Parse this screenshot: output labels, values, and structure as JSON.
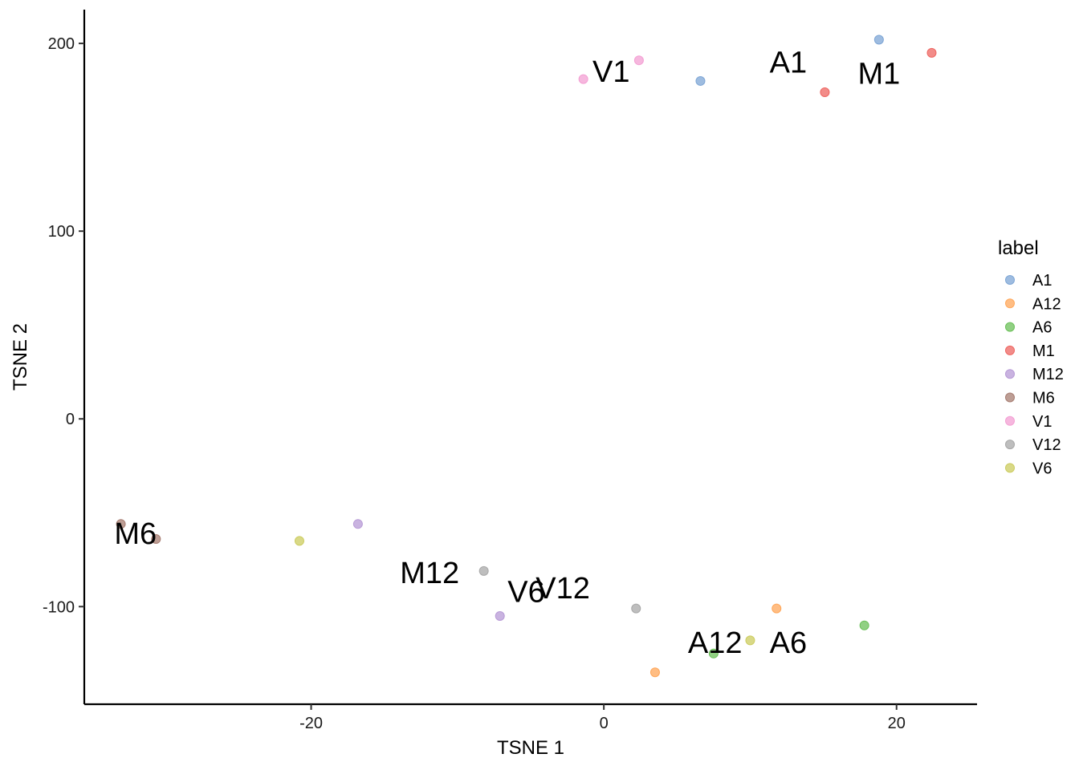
{
  "chart_data": {
    "type": "scatter",
    "title": "",
    "xlabel": "TSNE 1",
    "ylabel": "TSNE 2",
    "xlim": [
      -35.5,
      25.5
    ],
    "ylim": [
      -152,
      218
    ],
    "x_ticks": [
      -20,
      0,
      20
    ],
    "y_ticks": [
      -100,
      0,
      100,
      200
    ],
    "x_tick_labels": [
      "-20",
      "0",
      "20"
    ],
    "y_tick_labels": [
      "-100",
      "0",
      "100",
      "200"
    ],
    "grid": false,
    "legend": {
      "title": "label",
      "placement": "right"
    },
    "series": [
      {
        "name": "A1",
        "color": "#7EA6D5",
        "points": [
          [
            18.8,
            202
          ],
          [
            6.6,
            180
          ]
        ]
      },
      {
        "name": "A12",
        "color": "#FFA75A",
        "points": [
          [
            11.8,
            -101
          ],
          [
            3.5,
            -135
          ]
        ]
      },
      {
        "name": "A6",
        "color": "#6CC05A",
        "points": [
          [
            17.8,
            -110
          ],
          [
            7.5,
            -125
          ]
        ]
      },
      {
        "name": "M1",
        "color": "#EE6661",
        "points": [
          [
            22.4,
            195
          ],
          [
            15.1,
            174
          ]
        ]
      },
      {
        "name": "M12",
        "color": "#B79AD6",
        "points": [
          [
            -16.8,
            -56
          ],
          [
            -7.1,
            -105
          ]
        ]
      },
      {
        "name": "M6",
        "color": "#A77D72",
        "points": [
          [
            -33.0,
            -56
          ],
          [
            -30.6,
            -64
          ]
        ]
      },
      {
        "name": "V1",
        "color": "#F39FD3",
        "points": [
          [
            -1.4,
            181
          ],
          [
            2.4,
            191
          ]
        ]
      },
      {
        "name": "V12",
        "color": "#A8A8A8",
        "points": [
          [
            -8.2,
            -81
          ],
          [
            2.2,
            -101
          ]
        ]
      },
      {
        "name": "V6",
        "color": "#CCCC5F",
        "points": [
          [
            -20.8,
            -65
          ],
          [
            10.0,
            -118
          ]
        ]
      }
    ],
    "annotations": [
      {
        "text": "A1",
        "x": 12.6,
        "y": 190
      },
      {
        "text": "M1",
        "x": 18.8,
        "y": 184
      },
      {
        "text": "V1",
        "x": 0.5,
        "y": 185
      },
      {
        "text": "M6",
        "x": -32.0,
        "y": -61
      },
      {
        "text": "M12",
        "x": -11.9,
        "y": -82
      },
      {
        "text": "V6",
        "x": -5.3,
        "y": -92
      },
      {
        "text": "V12",
        "x": -2.8,
        "y": -90
      },
      {
        "text": "A12",
        "x": 7.6,
        "y": -119
      },
      {
        "text": "A6",
        "x": 12.6,
        "y": -119
      }
    ]
  }
}
